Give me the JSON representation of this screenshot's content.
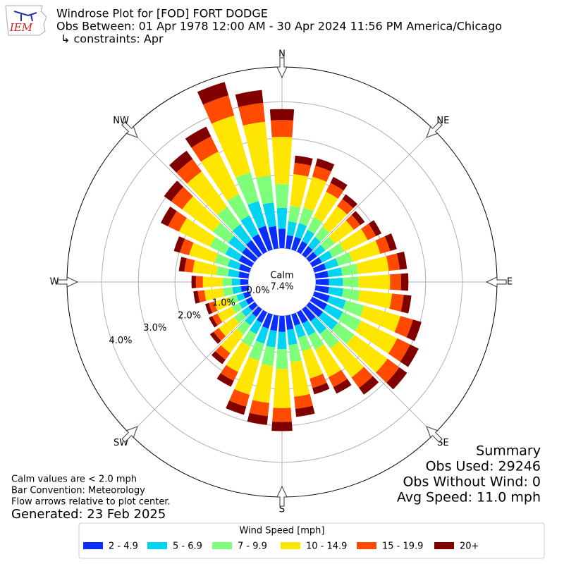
{
  "chart_data": {
    "type": "windrose",
    "title": "Windrose Plot for [FOD] FORT DODGE",
    "subtitle": "Obs Between: 01 Apr 1978 12:00 AM - 30 Apr 2024 11:56 PM America/Chicago",
    "constraints": "↳ constraints: Apr",
    "logo_text": "IEM",
    "x": [
      0,
      10,
      20,
      30,
      40,
      50,
      60,
      70,
      80,
      90,
      100,
      110,
      120,
      130,
      140,
      150,
      160,
      170,
      180,
      190,
      200,
      210,
      220,
      230,
      240,
      250,
      260,
      270,
      280,
      290,
      300,
      310,
      320,
      330,
      340,
      350
    ],
    "compass_labels": [
      "N",
      "NE",
      "E",
      "SE",
      "S",
      "SW",
      "W",
      "NW"
    ],
    "rlim": [
      0,
      4.95
    ],
    "rticks": [
      {
        "value": 0,
        "label": "0.0%"
      },
      {
        "value": 1,
        "label": "1.0%"
      },
      {
        "value": 2,
        "label": "2.0%"
      },
      {
        "value": 3,
        "label": "3.0%"
      },
      {
        "value": 4,
        "label": "4.0%"
      }
    ],
    "calm_label": "Calm",
    "calm_percent": "7.4%",
    "legend_title": "Wind Speed [mph]",
    "series": [
      {
        "name": "2 - 4.9",
        "color": "#0a2dff",
        "values": [
          0.53,
          0.36,
          0.36,
          0.32,
          0.29,
          0.26,
          0.29,
          0.33,
          0.35,
          0.36,
          0.37,
          0.43,
          0.45,
          0.46,
          0.4,
          0.34,
          0.32,
          0.39,
          0.44,
          0.42,
          0.4,
          0.32,
          0.26,
          0.21,
          0.18,
          0.18,
          0.21,
          0.22,
          0.27,
          0.3,
          0.39,
          0.43,
          0.49,
          0.53,
          0.67,
          0.61
        ]
      },
      {
        "name": "5 - 6.9",
        "color": "#00d4f0",
        "values": [
          0.57,
          0.38,
          0.39,
          0.34,
          0.31,
          0.28,
          0.32,
          0.35,
          0.38,
          0.38,
          0.39,
          0.46,
          0.48,
          0.5,
          0.43,
          0.37,
          0.34,
          0.42,
          0.47,
          0.45,
          0.43,
          0.34,
          0.28,
          0.23,
          0.2,
          0.19,
          0.23,
          0.23,
          0.29,
          0.32,
          0.41,
          0.46,
          0.53,
          0.57,
          0.71,
          0.65
        ]
      },
      {
        "name": "7 - 9.9",
        "color": "#7dff7a",
        "values": [
          0.65,
          0.43,
          0.44,
          0.39,
          0.35,
          0.32,
          0.36,
          0.4,
          0.43,
          0.43,
          0.45,
          0.52,
          0.55,
          0.56,
          0.49,
          0.42,
          0.39,
          0.47,
          0.54,
          0.51,
          0.48,
          0.38,
          0.31,
          0.26,
          0.22,
          0.21,
          0.26,
          0.26,
          0.32,
          0.37,
          0.47,
          0.52,
          0.6,
          0.65,
          0.81,
          0.74
        ]
      },
      {
        "name": "10 - 14.9",
        "color": "#ffe600",
        "values": [
          1.29,
          0.87,
          0.88,
          0.77,
          0.69,
          0.64,
          0.71,
          0.79,
          0.85,
          0.86,
          0.89,
          1.03,
          1.1,
          1.12,
          0.98,
          0.84,
          0.77,
          0.95,
          1.07,
          1.02,
          0.97,
          0.77,
          0.63,
          0.51,
          0.44,
          0.43,
          0.51,
          0.53,
          0.65,
          0.73,
          0.94,
          1.04,
          1.19,
          1.29,
          1.62,
          1.48
        ]
      },
      {
        "name": "15 - 19.9",
        "color": "#ff4a00",
        "values": [
          0.46,
          0.31,
          0.31,
          0.27,
          0.24,
          0.22,
          0.25,
          0.28,
          0.3,
          0.3,
          0.32,
          0.36,
          0.39,
          0.4,
          0.35,
          0.3,
          0.27,
          0.33,
          0.38,
          0.36,
          0.34,
          0.27,
          0.22,
          0.18,
          0.16,
          0.15,
          0.18,
          0.19,
          0.23,
          0.26,
          0.33,
          0.37,
          0.42,
          0.46,
          0.57,
          0.52
        ]
      },
      {
        "name": "20+",
        "color": "#800000",
        "values": [
          0.3,
          0.2,
          0.21,
          0.18,
          0.16,
          0.15,
          0.17,
          0.19,
          0.2,
          0.2,
          0.21,
          0.24,
          0.26,
          0.26,
          0.23,
          0.2,
          0.18,
          0.22,
          0.25,
          0.24,
          0.23,
          0.18,
          0.15,
          0.12,
          0.1,
          0.1,
          0.12,
          0.12,
          0.15,
          0.17,
          0.22,
          0.24,
          0.28,
          0.3,
          0.38,
          0.35
        ]
      }
    ],
    "summary": [
      "Summary",
      "Obs Used: 29246",
      "Obs Without Wind: 0",
      "Avg Speed: 11.0 mph"
    ],
    "notes": [
      "Calm values are < 2.0 mph",
      "Bar Convention: Meteorology",
      "Flow arrows relative to plot center."
    ],
    "generated": "Generated: 23 Feb 2025"
  }
}
